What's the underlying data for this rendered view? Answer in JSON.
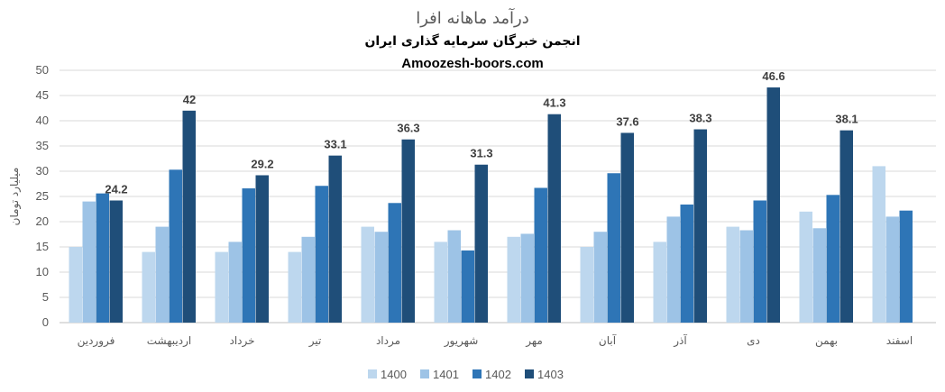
{
  "chart_data": {
    "type": "bar",
    "title": "درآمد ماهانه افرا",
    "subtitle": "انجمن خبرگان سرمایه گذاری ایران",
    "source": "Amoozesh-boors.com",
    "xlabel": "",
    "ylabel": "میلیارد تومان",
    "ylim": [
      0,
      50
    ],
    "yticks": [
      0,
      5,
      10,
      15,
      20,
      25,
      30,
      35,
      40,
      45,
      50
    ],
    "grid": true,
    "legend_position": "bottom",
    "categories": [
      "فروردین",
      "اردیبهشت",
      "خرداد",
      "تیر",
      "مرداد",
      "شهریور",
      "مهر",
      "آبان",
      "آذر",
      "دی",
      "بهمن",
      "اسفند"
    ],
    "series": [
      {
        "name": "1400",
        "color": "#bdd7ee",
        "values": [
          15.0,
          14.0,
          14.0,
          14.0,
          19.0,
          16.0,
          17.0,
          15.0,
          16.0,
          19.0,
          22.0,
          31.0
        ]
      },
      {
        "name": "1401",
        "color": "#9dc3e6",
        "values": [
          24.0,
          19.0,
          16.0,
          17.0,
          18.0,
          18.3,
          17.6,
          18.0,
          21.0,
          18.3,
          18.7,
          21.0
        ]
      },
      {
        "name": "1402",
        "color": "#2e75b6",
        "values": [
          25.6,
          30.3,
          26.6,
          27.1,
          23.7,
          14.3,
          26.7,
          29.6,
          23.4,
          24.2,
          25.3,
          22.2
        ]
      },
      {
        "name": "1403",
        "color": "#1f4e79",
        "values": [
          24.2,
          42,
          29.2,
          33.1,
          36.3,
          31.3,
          41.3,
          37.6,
          38.3,
          46.6,
          38.1,
          null
        ],
        "labels": [
          "24.2",
          "42",
          "29.2",
          "33.1",
          "36.3",
          "31.3",
          "41.3",
          "37.6",
          "38.3",
          "46.6",
          "38.1",
          ""
        ]
      }
    ]
  }
}
